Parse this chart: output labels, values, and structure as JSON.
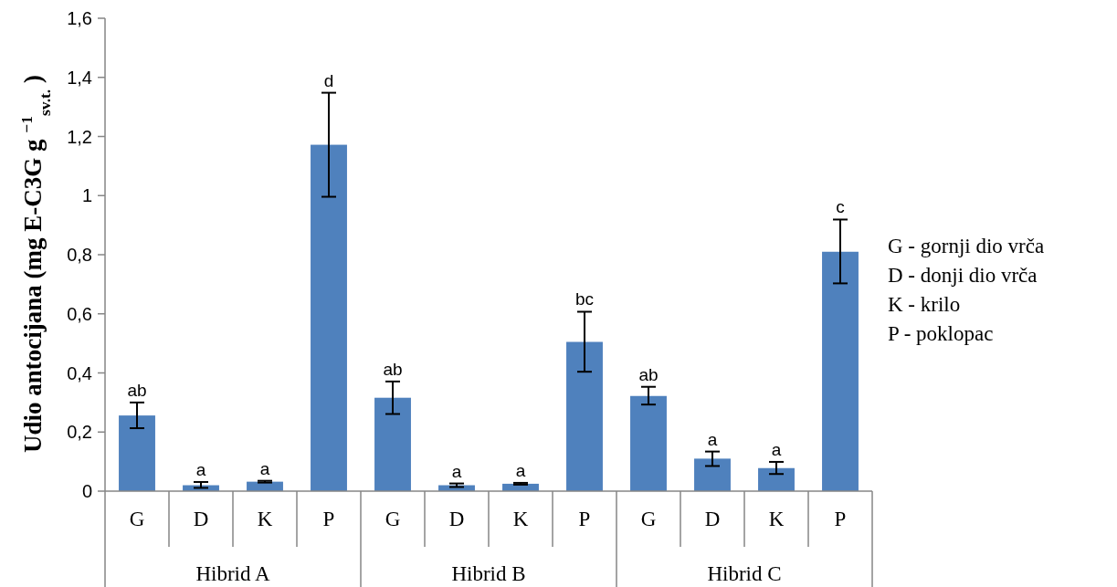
{
  "chart_data": {
    "type": "bar",
    "ylabel": "Udio antocijana (mg E-C3G g $^{−1}$$_{sv.t.}$ )",
    "categories": [
      "G",
      "D",
      "K",
      "P",
      "G",
      "D",
      "K",
      "P",
      "G",
      "D",
      "K",
      "P"
    ],
    "values": [
      0.256,
      0.02,
      0.032,
      1.172,
      0.316,
      0.02,
      0.025,
      0.505,
      0.322,
      0.11,
      0.078,
      0.81
    ],
    "errors": [
      [
        0.213,
        0.3
      ],
      [
        0.011,
        0.031
      ],
      [
        0.029,
        0.035
      ],
      [
        0.996,
        1.348
      ],
      [
        0.261,
        0.371
      ],
      [
        0.014,
        0.026
      ],
      [
        0.022,
        0.028
      ],
      [
        0.404,
        0.607
      ],
      [
        0.293,
        0.353
      ],
      [
        0.085,
        0.134
      ],
      [
        0.058,
        0.099
      ],
      [
        0.703,
        0.919
      ]
    ],
    "value_labels": [
      "ab",
      "a",
      "a",
      "d",
      "ab",
      "a",
      "a",
      "bc",
      "ab",
      "a",
      "a",
      "c"
    ],
    "color": "#4f81bd",
    "ylim": [
      0,
      1.6
    ],
    "yticks": [
      0,
      {
        "value": 0.2,
        "label": "0,2"
      },
      {
        "value": 0.4,
        "label": "0,4"
      },
      {
        "value": 0.6,
        "label": "0,6"
      },
      {
        "value": 0.8,
        "label": "0,8"
      },
      1,
      {
        "value": 1.2,
        "label": "1,2"
      },
      {
        "value": 1.4,
        "label": "1,4"
      },
      {
        "value": 1.6,
        "label": "1,6"
      }
    ],
    "grid": false,
    "annotations": [
      "Hibrid A",
      "Hibrid B",
      "Hibrid C",
      "G - gornji dio vrča",
      "D - donji dio vrča",
      "K - krilo",
      "P - poklopac"
    ]
  }
}
